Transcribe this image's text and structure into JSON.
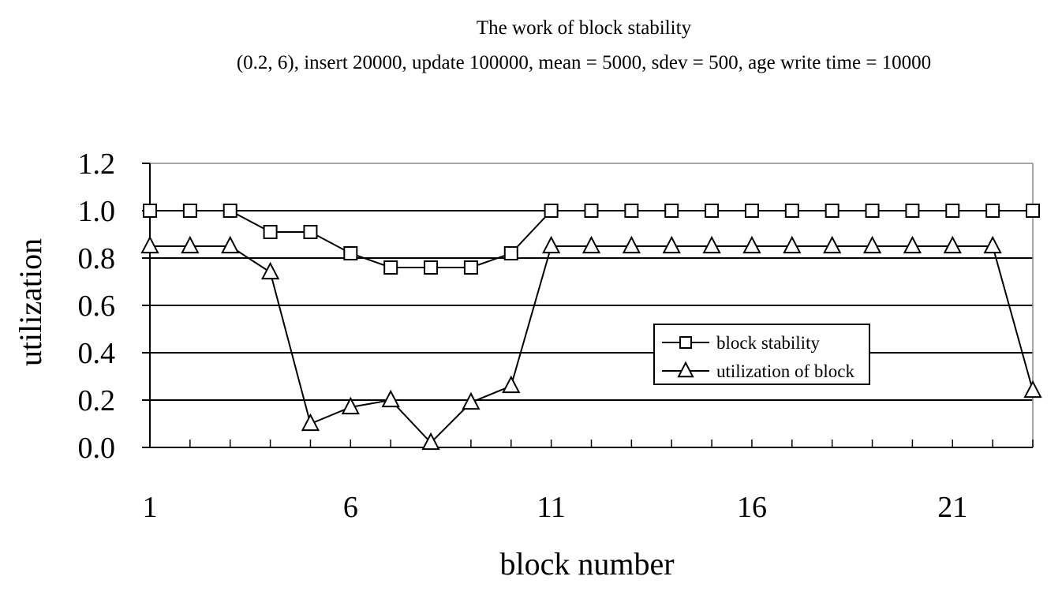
{
  "chart_data": {
    "type": "line",
    "title": "The work of block stability",
    "subtitle": "(0.2, 6), insert 20000, update 100000, mean = 5000, sdev = 500, age write time = 10000",
    "xlabel": "block number",
    "ylabel": "utilization",
    "x": [
      1,
      2,
      3,
      4,
      5,
      6,
      7,
      8,
      9,
      10,
      11,
      12,
      13,
      14,
      15,
      16,
      17,
      18,
      19,
      20,
      21,
      22,
      23
    ],
    "x_tick_labels": [
      "1",
      "6",
      "11",
      "16",
      "21"
    ],
    "x_tick_values": [
      1,
      6,
      11,
      16,
      21
    ],
    "y_tick_labels": [
      "0.0",
      "0.2",
      "0.4",
      "0.6",
      "0.8",
      "1.0",
      "1.2"
    ],
    "y_tick_values": [
      0,
      0.2,
      0.4,
      0.6,
      0.8,
      1.0,
      1.2
    ],
    "ylim": [
      0,
      1.2
    ],
    "xlim": [
      1,
      23
    ],
    "grid": "horizontal",
    "legend_position": "center-right",
    "series": [
      {
        "name": "block stability",
        "marker": "square",
        "values": [
          1.0,
          1.0,
          1.0,
          0.91,
          0.91,
          0.82,
          0.76,
          0.76,
          0.76,
          0.82,
          1.0,
          1.0,
          1.0,
          1.0,
          1.0,
          1.0,
          1.0,
          1.0,
          1.0,
          1.0,
          1.0,
          1.0,
          1.0
        ]
      },
      {
        "name": "utilization of block",
        "marker": "triangle",
        "values": [
          0.85,
          0.85,
          0.85,
          0.74,
          0.1,
          0.17,
          0.2,
          0.02,
          0.19,
          0.26,
          0.85,
          0.85,
          0.85,
          0.85,
          0.85,
          0.85,
          0.85,
          0.85,
          0.85,
          0.85,
          0.85,
          0.85,
          0.24
        ]
      }
    ],
    "colors": {
      "line": "#000000",
      "grid": "#000000",
      "background": "#ffffff"
    }
  }
}
